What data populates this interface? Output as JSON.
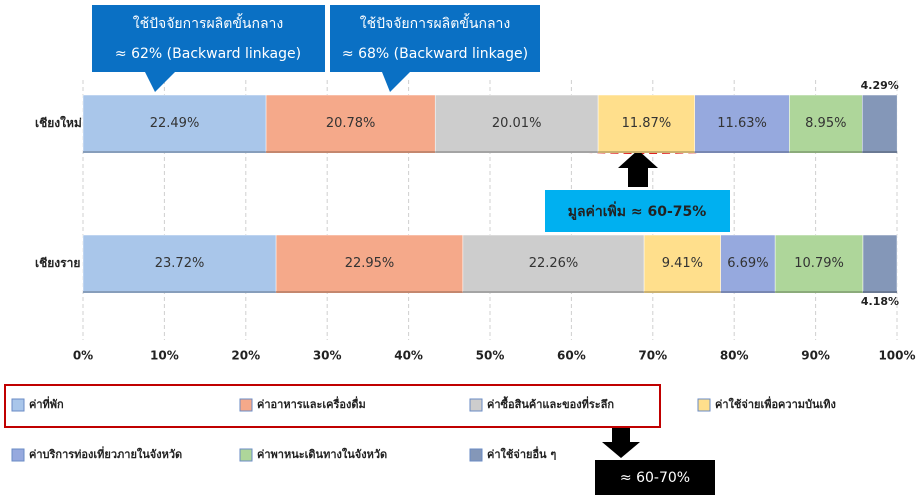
{
  "chart_data": {
    "type": "stacked_bar_horizontal",
    "categories": [
      "เชียงใหม่",
      "เชียงราย"
    ],
    "xlim": [
      0,
      100
    ],
    "xticks": [
      {
        "value": 0,
        "label": "0%"
      },
      {
        "value": 10,
        "label": "10%"
      },
      {
        "value": 20,
        "label": "20%"
      },
      {
        "value": 30,
        "label": "30%"
      },
      {
        "value": 40,
        "label": "40%"
      },
      {
        "value": 50,
        "label": "50%"
      },
      {
        "value": 60,
        "label": "60%"
      },
      {
        "value": 70,
        "label": "70%"
      },
      {
        "value": 80,
        "label": "80%"
      },
      {
        "value": 90,
        "label": "90%"
      },
      {
        "value": 100,
        "label": "100%"
      }
    ],
    "grid": true,
    "series": [
      {
        "name": "ค่าที่พัก",
        "color": "#a9c6ea",
        "values": [
          22.49,
          23.72
        ],
        "value_labels": [
          "22.49%",
          "23.72%"
        ]
      },
      {
        "name": "ค่าอาหารและเครื่องดื่ม",
        "color": "#f5a98a",
        "values": [
          20.78,
          22.95
        ],
        "value_labels": [
          "20.78%",
          "22.95%"
        ]
      },
      {
        "name": "ค่าซื้อสินค้าและของที่ระลึก",
        "color": "#cdcdcd",
        "values": [
          20.01,
          22.26
        ],
        "value_labels": [
          "20.01%",
          "22.26%"
        ]
      },
      {
        "name": "ค่าใช้จ่ายเพื่อความบันเทิง",
        "color": "#ffdf8c",
        "values": [
          11.87,
          9.41
        ],
        "value_labels": [
          "11.87%",
          "9.41%"
        ]
      },
      {
        "name": "ค่าบริการท่องเที่ยวภายในจังหวัด",
        "color": "#96a9de",
        "values": [
          11.63,
          6.69
        ],
        "value_labels": [
          "11.63%",
          "6.69%"
        ]
      },
      {
        "name": "ค่าพาหนะเดินทางในจังหวัด",
        "color": "#aed69a",
        "values": [
          8.95,
          10.79
        ],
        "value_labels": [
          "8.95%",
          "10.79%"
        ]
      },
      {
        "name": "ค่าใช้จ่ายอื่น ๆ",
        "color": "#8497b8",
        "values": [
          4.29,
          4.18
        ],
        "value_labels": [
          "4.29%",
          "4.18%"
        ]
      }
    ],
    "annotations": [
      {
        "lines": [
          "ใช้ปัจจัยการผลิตขั้นกลาง",
          "≈ 62% (Backward linkage)"
        ]
      },
      {
        "lines": [
          "ใช้ปัจจัยการผลิตขั้นกลาง",
          "≈ 68% (Backward linkage)"
        ]
      },
      {
        "lines": [
          "มูลค่าเพิ่ม ≈ 60-75%"
        ]
      },
      {
        "lines": [
          "≈ 60-70%"
        ]
      }
    ]
  }
}
